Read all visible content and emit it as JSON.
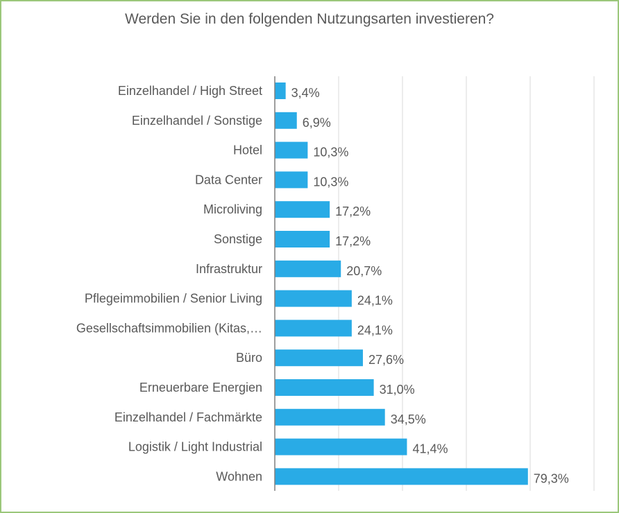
{
  "chart_data": {
    "type": "bar",
    "orientation": "horizontal",
    "title": "Werden Sie in den folgenden Nutzungsarten investieren?",
    "categories": [
      "Einzelhandel / High Street",
      "Einzelhandel / Sonstige",
      "Hotel",
      "Data Center",
      "Microliving",
      "Sonstige",
      "Infrastruktur",
      "Pflegeimmobilien / Senior Living",
      "Gesellschaftsimmobilien (Kitas,…",
      "Büro",
      "Erneuerbare Energien",
      "Einzelhandel / Fachmärkte",
      "Logistik / Light Industrial",
      "Wohnen"
    ],
    "values": [
      3.4,
      6.9,
      10.3,
      10.3,
      17.2,
      17.2,
      20.7,
      24.1,
      24.1,
      27.6,
      31.0,
      34.5,
      41.4,
      79.3
    ],
    "value_labels": [
      "3,4%",
      "6,9%",
      "10,3%",
      "10,3%",
      "17,2%",
      "17,2%",
      "20,7%",
      "24,1%",
      "24,1%",
      "27,6%",
      "31,0%",
      "34,5%",
      "41,4%",
      "79,3%"
    ],
    "xlim": [
      0,
      100
    ],
    "grid": true,
    "bar_color": "#29abe6",
    "gridline_color": "#d9d9d9",
    "text_color": "#595959",
    "frame_color": "#9bc77a"
  }
}
